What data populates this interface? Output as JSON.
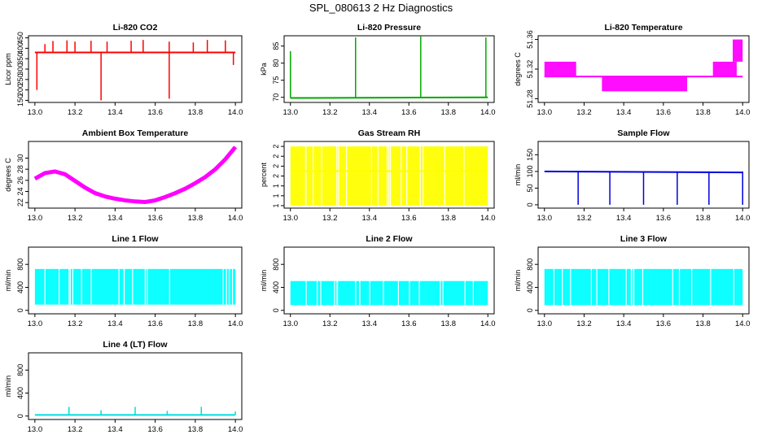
{
  "page": {
    "title": "SPL_080613  2 Hz Diagnostics"
  },
  "chart_data": [
    {
      "type": "line",
      "title": "Li-820 CO2",
      "xlabel": "",
      "ylabel": "Licor ppm",
      "xlim": [
        13.0,
        14.0
      ],
      "ylim": [
        140,
        460
      ],
      "x_ticks": [
        13.0,
        13.2,
        13.4,
        13.6,
        13.8,
        14.0
      ],
      "y_ticks": [
        150,
        200,
        250,
        300,
        350,
        400,
        450
      ],
      "color": "#ff0000",
      "series": [
        {
          "values_description": "baseline",
          "x": [
            13.0,
            14.0
          ],
          "y": [
            380,
            380
          ]
        }
      ],
      "spikes": [
        {
          "x": 13.01,
          "y": 200
        },
        {
          "x": 13.05,
          "y": 420
        },
        {
          "x": 13.09,
          "y": 435
        },
        {
          "x": 13.16,
          "y": 438
        },
        {
          "x": 13.2,
          "y": 432
        },
        {
          "x": 13.28,
          "y": 436
        },
        {
          "x": 13.33,
          "y": 150
        },
        {
          "x": 13.36,
          "y": 432
        },
        {
          "x": 13.48,
          "y": 436
        },
        {
          "x": 13.54,
          "y": 440
        },
        {
          "x": 13.67,
          "y": 158
        },
        {
          "x": 13.67,
          "y": 432
        },
        {
          "x": 13.79,
          "y": 428
        },
        {
          "x": 13.86,
          "y": 440
        },
        {
          "x": 13.95,
          "y": 438
        },
        {
          "x": 13.99,
          "y": 320
        }
      ]
    },
    {
      "type": "line",
      "title": "Li-820 Pressure",
      "xlabel": "",
      "ylabel": "kPa",
      "xlim": [
        13.0,
        14.0
      ],
      "ylim": [
        68.5,
        88
      ],
      "x_ticks": [
        13.0,
        13.2,
        13.4,
        13.6,
        13.8,
        14.0
      ],
      "y_ticks": [
        70,
        75,
        80,
        85
      ],
      "color": "#00aa00",
      "series": [
        {
          "x": [
            13.0,
            14.0
          ],
          "y": [
            69.8,
            70.0
          ]
        }
      ],
      "spikes": [
        {
          "x": 13.0,
          "y": 83.5
        },
        {
          "x": 13.33,
          "y": 87.5
        },
        {
          "x": 13.66,
          "y": 87.8
        },
        {
          "x": 13.99,
          "y": 87.5
        }
      ]
    },
    {
      "type": "line",
      "title": "Li-820 Temperature",
      "xlabel": "",
      "ylabel": "degrees C",
      "xlim": [
        13.0,
        14.0
      ],
      "ylim": [
        51.275,
        51.365
      ],
      "x_ticks": [
        13.0,
        13.2,
        13.4,
        13.6,
        13.8,
        14.0
      ],
      "y_ticks": [
        51.28,
        51.32,
        51.36
      ],
      "color": "#ff00ff",
      "bands": [
        {
          "x0": 13.0,
          "x1": 13.16,
          "y0": 51.31,
          "y1": 51.33
        },
        {
          "x0": 13.29,
          "x1": 13.72,
          "y0": 51.29,
          "y1": 51.31
        },
        {
          "x0": 13.85,
          "x1": 13.97,
          "y0": 51.31,
          "y1": 51.33
        },
        {
          "x0": 13.95,
          "x1": 14.0,
          "y0": 51.33,
          "y1": 51.36
        }
      ],
      "series": [
        {
          "x": [
            13.0,
            14.0
          ],
          "y": [
            51.31,
            51.31
          ]
        }
      ]
    },
    {
      "type": "line",
      "title": "Ambient Box Temperature",
      "xlabel": "",
      "ylabel": "degrees C",
      "xlim": [
        13.0,
        14.0
      ],
      "ylim": [
        21,
        33
      ],
      "x_ticks": [
        13.0,
        13.2,
        13.4,
        13.6,
        13.8,
        14.0
      ],
      "y_ticks": [
        22,
        24,
        26,
        28,
        30
      ],
      "color": "#ff00ff",
      "series": [
        {
          "x": [
            13.0,
            13.05,
            13.1,
            13.15,
            13.2,
            13.25,
            13.3,
            13.35,
            13.4,
            13.45,
            13.5,
            13.55,
            13.6,
            13.65,
            13.7,
            13.75,
            13.8,
            13.85,
            13.9,
            13.95,
            14.0
          ],
          "y": [
            26.3,
            27.3,
            27.6,
            27.1,
            25.9,
            24.7,
            23.7,
            23.1,
            22.7,
            22.4,
            22.2,
            22.1,
            22.4,
            23.0,
            23.7,
            24.5,
            25.5,
            26.6,
            28.0,
            29.8,
            32.0
          ]
        }
      ]
    },
    {
      "type": "line",
      "title": "Gas Stream RH",
      "xlabel": "",
      "ylabel": "percent",
      "xlim": [
        13.0,
        14.0
      ],
      "ylim": [
        0.95,
        2.3
      ],
      "x_ticks": [
        13.0,
        13.2,
        13.4,
        13.6,
        13.8,
        14.0
      ],
      "y_ticks": [
        1.0,
        1.2,
        1.4,
        1.6,
        1.8,
        2.0,
        2.2
      ],
      "color": "#ffff00",
      "bands": [
        {
          "x0": 13.0,
          "x1": 14.0,
          "y0": 1.0,
          "y1": 2.2
        }
      ],
      "series": [
        {
          "x": [
            13.0,
            14.0
          ],
          "y": [
            1.7,
            1.7
          ]
        }
      ]
    },
    {
      "type": "line",
      "title": "Sample Flow",
      "xlabel": "",
      "ylabel": "ml/min",
      "xlim": [
        13.0,
        14.0
      ],
      "ylim": [
        -10,
        190
      ],
      "x_ticks": [
        13.0,
        13.2,
        13.4,
        13.6,
        13.8,
        14.0
      ],
      "y_ticks": [
        0,
        50,
        100,
        150
      ],
      "color": "#0000dd",
      "series": [
        {
          "x": [
            13.0,
            14.0
          ],
          "y": [
            100,
            97
          ]
        }
      ],
      "spikes": [
        {
          "x": 13.17,
          "y": 0
        },
        {
          "x": 13.33,
          "y": 0
        },
        {
          "x": 13.5,
          "y": 0
        },
        {
          "x": 13.67,
          "y": 0
        },
        {
          "x": 13.83,
          "y": 0
        },
        {
          "x": 14.0,
          "y": 0
        }
      ]
    },
    {
      "type": "area",
      "title": "Line 1 Flow",
      "xlabel": "",
      "ylabel": "ml/min",
      "xlim": [
        13.0,
        14.0
      ],
      "ylim": [
        -60,
        1100
      ],
      "x_ticks": [
        13.0,
        13.2,
        13.4,
        13.6,
        13.8,
        14.0
      ],
      "y_ticks": [
        0,
        400,
        800
      ],
      "color": "#00ffff",
      "bands": [
        {
          "x0": 13.0,
          "x1": 14.0,
          "y0": 100,
          "y1": 720
        }
      ],
      "series": [
        {
          "x": [
            13.0,
            14.0
          ],
          "y": [
            100,
            720
          ]
        }
      ]
    },
    {
      "type": "area",
      "title": "Line 2 Flow",
      "xlabel": "",
      "ylabel": "ml/min",
      "xlim": [
        13.0,
        14.0
      ],
      "ylim": [
        -60,
        1100
      ],
      "x_ticks": [
        13.0,
        13.2,
        13.4,
        13.6,
        13.8,
        14.0
      ],
      "y_ticks": [
        0,
        400,
        800
      ],
      "color": "#00ffff",
      "bands": [
        {
          "x0": 13.0,
          "x1": 14.0,
          "y0": 90,
          "y1": 510
        }
      ],
      "series": [
        {
          "x": [
            13.0,
            14.0
          ],
          "y": [
            90,
            510
          ]
        }
      ]
    },
    {
      "type": "area",
      "title": "Line 3 Flow",
      "xlabel": "",
      "ylabel": "ml/min",
      "xlim": [
        13.0,
        14.0
      ],
      "ylim": [
        -60,
        1100
      ],
      "x_ticks": [
        13.0,
        13.2,
        13.4,
        13.6,
        13.8,
        14.0
      ],
      "y_ticks": [
        0,
        400,
        800
      ],
      "color": "#00ffff",
      "bands": [
        {
          "x0": 13.0,
          "x1": 14.0,
          "y0": 90,
          "y1": 720
        }
      ],
      "series": [
        {
          "x": [
            13.0,
            14.0
          ],
          "y": [
            90,
            720
          ]
        }
      ]
    },
    {
      "type": "line",
      "title": "Line 4 (LT) Flow",
      "xlabel": "",
      "ylabel": "ml/min",
      "xlim": [
        13.0,
        14.0
      ],
      "ylim": [
        -60,
        1100
      ],
      "x_ticks": [
        13.0,
        13.2,
        13.4,
        13.6,
        13.8,
        14.0
      ],
      "y_ticks": [
        0,
        400,
        800
      ],
      "color": "#00dddd",
      "series": [
        {
          "x": [
            13.0,
            14.0
          ],
          "y": [
            20,
            20
          ]
        }
      ],
      "spikes": [
        {
          "x": 13.17,
          "y": 160
        },
        {
          "x": 13.33,
          "y": 100
        },
        {
          "x": 13.5,
          "y": 160
        },
        {
          "x": 13.66,
          "y": 90
        },
        {
          "x": 13.83,
          "y": 160
        },
        {
          "x": 14.0,
          "y": 80
        }
      ]
    }
  ]
}
